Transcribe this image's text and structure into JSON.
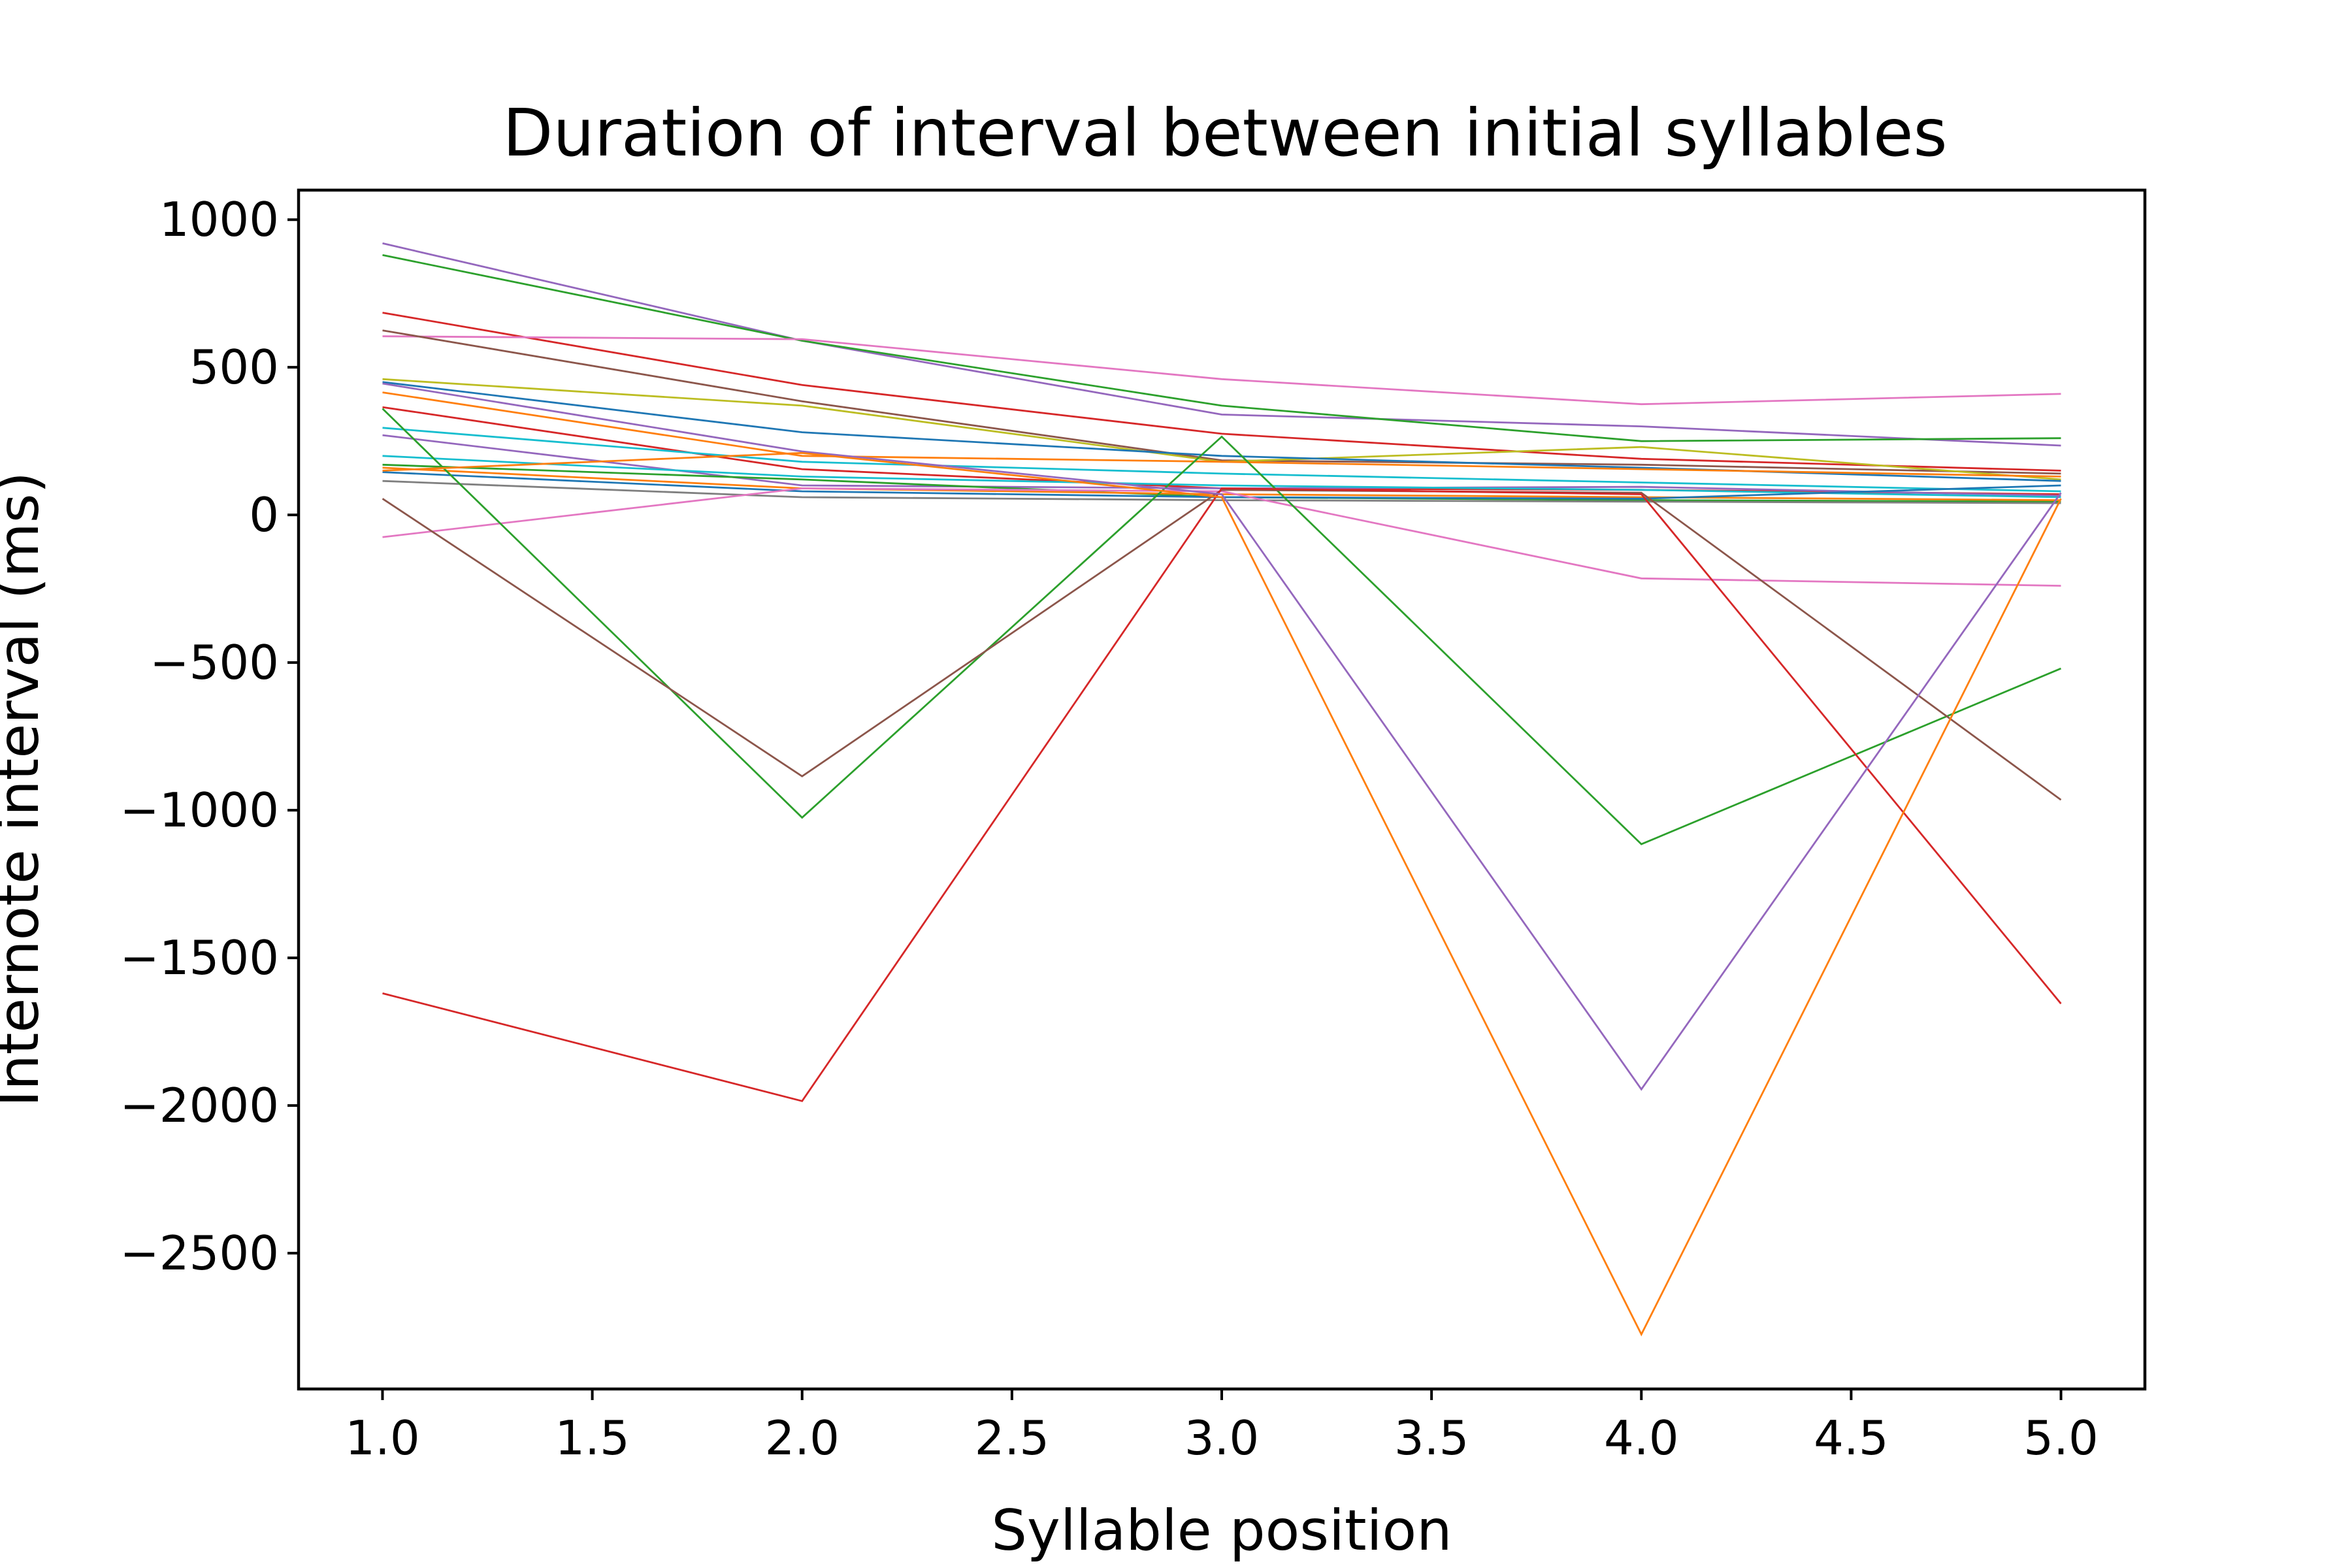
{
  "chart_data": {
    "type": "line",
    "title": "Duration of interval between initial syllables",
    "xlabel": "Syllable position",
    "ylabel": "Internote interval (ms)",
    "x": [
      1,
      2,
      3,
      4,
      5
    ],
    "xlim": [
      0.8,
      5.2
    ],
    "ylim": [
      -2960,
      1100
    ],
    "xticks": [
      1.0,
      1.5,
      2.0,
      2.5,
      3.0,
      3.5,
      4.0,
      4.5,
      5.0
    ],
    "xtick_labels": [
      "1.0",
      "1.5",
      "2.0",
      "2.5",
      "3.0",
      "3.5",
      "4.0",
      "4.5",
      "5.0"
    ],
    "yticks": [
      1000,
      500,
      0,
      -500,
      -1000,
      -1500,
      -2000,
      -2500
    ],
    "ytick_labels": [
      "1000",
      "500",
      "0",
      "−500",
      "−1000",
      "−1500",
      "−2000",
      "−2500"
    ],
    "grid": false,
    "legend": "none",
    "series": [
      {
        "color": "#9467bd",
        "values": [
          920,
          590,
          340,
          300,
          235
        ]
      },
      {
        "color": "#2ca02c",
        "values": [
          880,
          590,
          370,
          250,
          260
        ]
      },
      {
        "color": "#d62728",
        "values": [
          685,
          440,
          275,
          190,
          150
        ]
      },
      {
        "color": "#e377c2",
        "values": [
          605,
          595,
          460,
          375,
          410
        ]
      },
      {
        "color": "#8c564b",
        "values": [
          625,
          385,
          185,
          170,
          140
        ]
      },
      {
        "color": "#bcbd22",
        "values": [
          460,
          370,
          180,
          230,
          120
        ]
      },
      {
        "color": "#1f77b4",
        "values": [
          450,
          280,
          200,
          160,
          115
        ]
      },
      {
        "color": "#ff7f0e",
        "values": [
          415,
          200,
          180,
          155,
          130
        ]
      },
      {
        "color": "#d62728",
        "values": [
          365,
          155,
          90,
          85,
          70
        ]
      },
      {
        "color": "#17becf",
        "values": [
          295,
          180,
          140,
          110,
          80
        ]
      },
      {
        "color": "#9467bd",
        "values": [
          270,
          100,
          90,
          95,
          65
        ]
      },
      {
        "color": "#17becf",
        "values": [
          200,
          130,
          100,
          85,
          60
        ]
      },
      {
        "color": "#2ca02c",
        "values": [
          170,
          120,
          60,
          50,
          45
        ]
      },
      {
        "color": "#ff7f0e",
        "values": [
          160,
          90,
          70,
          60,
          50
        ]
      },
      {
        "color": "#7f7f7f",
        "values": [
          115,
          60,
          50,
          45,
          40
        ]
      },
      {
        "color": "#1f77b4",
        "values": [
          145,
          80,
          60,
          55,
          100
        ]
      },
      {
        "color": "#e377c2",
        "values": [
          -75,
          90,
          80,
          -215,
          -240
        ]
      },
      {
        "color": "#2ca02c",
        "values": [
          360,
          -1025,
          265,
          -1115,
          -520
        ]
      },
      {
        "color": "#8c564b",
        "values": [
          55,
          -885,
          85,
          75,
          -965
        ]
      },
      {
        "color": "#d62728",
        "values": [
          -1620,
          -1985,
          90,
          70,
          -1655
        ]
      },
      {
        "color": "#9467bd",
        "values": [
          445,
          215,
          70,
          -1945,
          75
        ]
      },
      {
        "color": "#ff7f0e",
        "values": [
          150,
          210,
          60,
          -2775,
          55
        ]
      }
    ]
  }
}
